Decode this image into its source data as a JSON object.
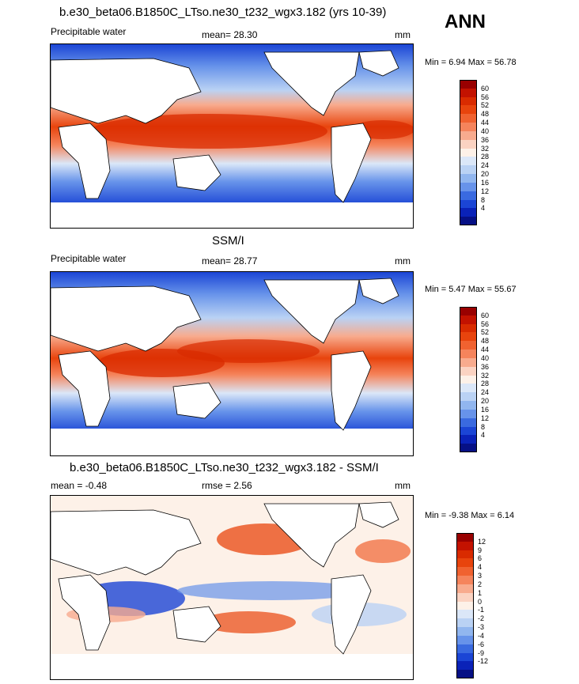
{
  "corner_label": "ANN",
  "panels": [
    {
      "title": "b.e30_beta06.B1850C_LTso.ne30_t232_wgx3.182 (yrs 10-39)",
      "left_label": "Precipitable water",
      "center_label": "mean=  28.30",
      "units": "mm",
      "minmax": "Min =  6.94 Max =  56.78",
      "ticks": [
        "60",
        "56",
        "52",
        "48",
        "44",
        "40",
        "36",
        "32",
        "28",
        "24",
        "20",
        "16",
        "12",
        "8",
        "4"
      ],
      "colors": [
        "#990000",
        "#c31200",
        "#d92b00",
        "#e8440d",
        "#f06230",
        "#f5845c",
        "#f8ab8e",
        "#fbd3c2",
        "#fdf1e8",
        "#dbe7f8",
        "#bad2f4",
        "#91b6ef",
        "#6793ea",
        "#3a6ae0",
        "#1b45d5",
        "#0a22b8",
        "#061085"
      ],
      "stats": {
        "min": 6.94,
        "max": 56.78,
        "mean": 28.3
      }
    },
    {
      "title": "SSM/I",
      "left_label": "Precipitable water",
      "center_label": "mean=  28.77",
      "units": "mm",
      "minmax": "Min =  5.47 Max =  55.67",
      "ticks": [
        "60",
        "56",
        "52",
        "48",
        "44",
        "40",
        "36",
        "32",
        "28",
        "24",
        "20",
        "16",
        "12",
        "8",
        "4"
      ],
      "colors": [
        "#990000",
        "#c31200",
        "#d92b00",
        "#e8440d",
        "#f06230",
        "#f5845c",
        "#f8ab8e",
        "#fbd3c2",
        "#fdf1e8",
        "#dbe7f8",
        "#bad2f4",
        "#91b6ef",
        "#6793ea",
        "#3a6ae0",
        "#1b45d5",
        "#0a22b8",
        "#061085"
      ],
      "stats": {
        "min": 5.47,
        "max": 55.67,
        "mean": 28.77
      }
    },
    {
      "title": "b.e30_beta06.B1850C_LTso.ne30_t232_wgx3.182 - SSM/I",
      "left_label": "mean =  -0.48",
      "center_label": "rmse =   2.56",
      "units": "mm",
      "minmax": "Min =  -9.38 Max =   6.14",
      "ticks": [
        "12",
        "9",
        "6",
        "4",
        "3",
        "2",
        "1",
        "0",
        "-1",
        "-2",
        "-3",
        "-4",
        "-6",
        "-9",
        "-12"
      ],
      "colors": [
        "#990000",
        "#c31200",
        "#d92b00",
        "#e8440d",
        "#f06230",
        "#f5845c",
        "#f8ab8e",
        "#fbd3c2",
        "#fdf1e8",
        "#dbe7f8",
        "#bad2f4",
        "#91b6ef",
        "#6793ea",
        "#3a6ae0",
        "#1b45d5",
        "#0a22b8",
        "#061085"
      ],
      "stats": {
        "min": -9.38,
        "max": 6.14,
        "mean": -0.48,
        "rmse": 2.56
      }
    }
  ]
}
